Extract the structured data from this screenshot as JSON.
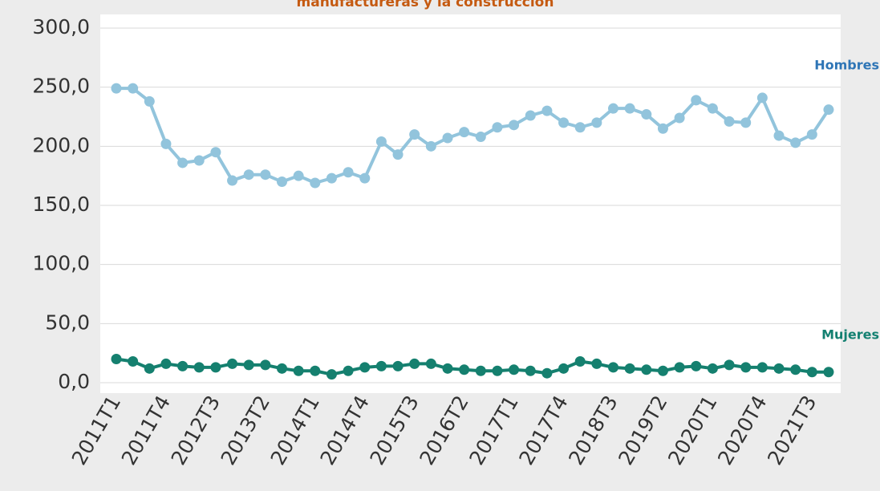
{
  "chart_data": {
    "type": "line",
    "title": "manufactureras y la construcción",
    "categories": [
      "2011T1",
      null,
      null,
      "2011T4",
      null,
      null,
      "2012T3",
      null,
      null,
      "2013T2",
      null,
      null,
      "2014T1",
      null,
      null,
      "2014T4",
      null,
      null,
      "2015T3",
      null,
      null,
      "2016T2",
      null,
      null,
      "2017T1",
      null,
      null,
      "2017T4",
      null,
      null,
      "2018T3",
      null,
      null,
      "2019T2",
      null,
      null,
      "2020T1",
      null,
      null,
      "2020T4",
      null,
      null,
      "2021T3",
      null
    ],
    "series": [
      {
        "name": "Hombres",
        "color": "#92c4dc",
        "label_color": "#2e75b6",
        "values": [
          249,
          249,
          238,
          202,
          186,
          188,
          195,
          171,
          176,
          176,
          170,
          175,
          169,
          173,
          178,
          173,
          204,
          193,
          210,
          200,
          207,
          212,
          208,
          216,
          218,
          226,
          230,
          220,
          216,
          220,
          232,
          232,
          227,
          215,
          224,
          239,
          232,
          221,
          220,
          241,
          209,
          203,
          210,
          231
        ]
      },
      {
        "name": "Mujeres",
        "color": "#15806f",
        "label_color": "#138071",
        "values": [
          20,
          18,
          12,
          16,
          14,
          13,
          13,
          16,
          15,
          15,
          12,
          10,
          10,
          7,
          10,
          13,
          14,
          14,
          16,
          16,
          12,
          11,
          10,
          10,
          11,
          10,
          8,
          12,
          18,
          16,
          13,
          12,
          11,
          10,
          13,
          14,
          12,
          15,
          13,
          13,
          12,
          11,
          9,
          9
        ]
      }
    ],
    "ylim": [
      0,
      300
    ],
    "yticks": [
      {
        "value": 0,
        "label": "0,0"
      },
      {
        "value": 50,
        "label": "50,0"
      },
      {
        "value": 100,
        "label": "100,0"
      },
      {
        "value": 150,
        "label": "150,0"
      },
      {
        "value": 200,
        "label": "200,0"
      },
      {
        "value": 250,
        "label": "250,0"
      },
      {
        "value": 300,
        "label": "300,0"
      }
    ],
    "grid": true,
    "title_color": "#c55a11"
  }
}
